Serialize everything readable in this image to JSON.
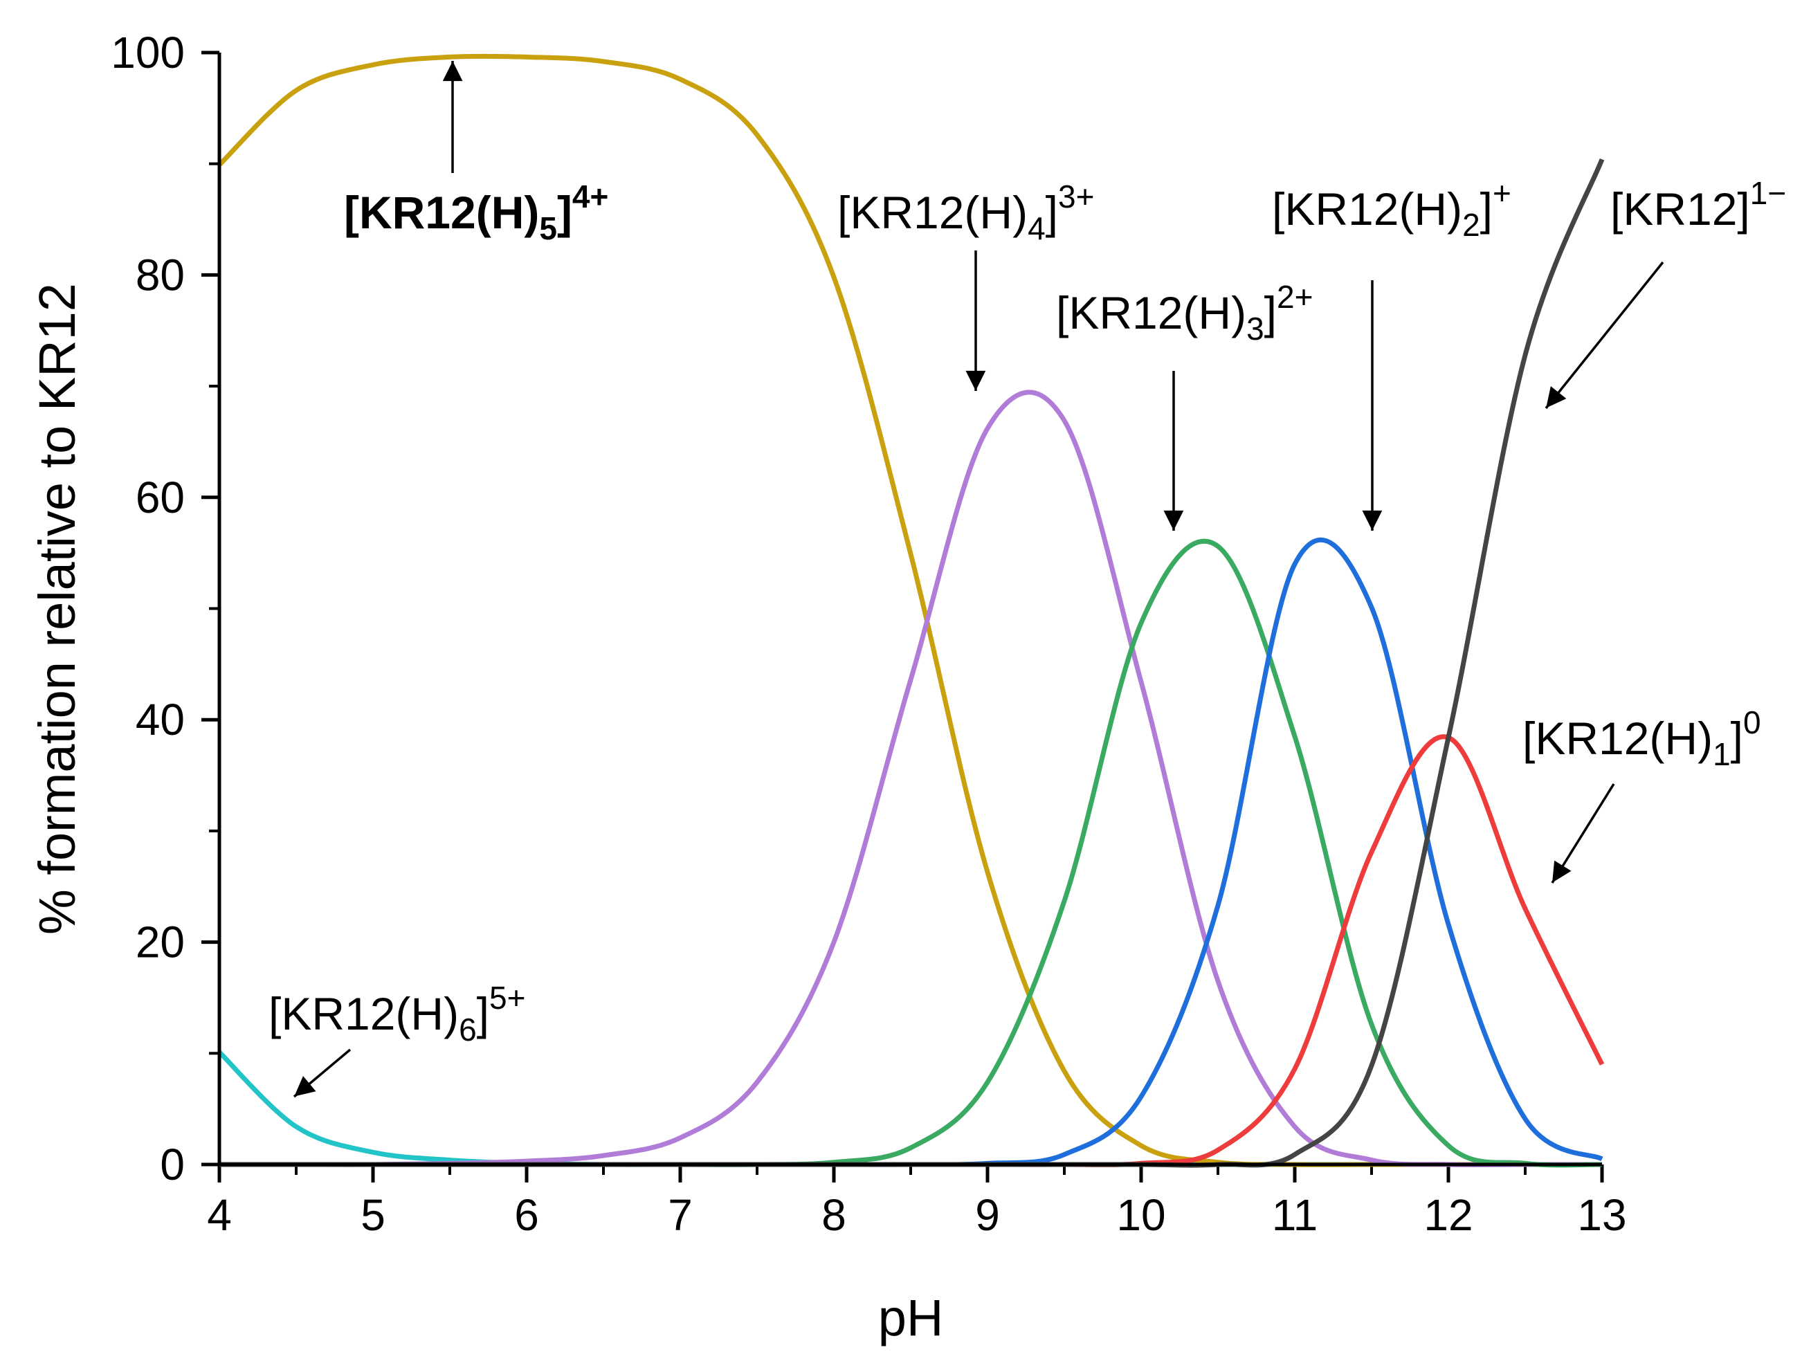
{
  "chart_data": {
    "type": "line",
    "xlabel": "pH",
    "ylabel": "% formation relative to KR12",
    "x": [
      4,
      4.5,
      5,
      5.5,
      6,
      6.5,
      7,
      7.5,
      8,
      8.5,
      9,
      9.5,
      10,
      10.5,
      11,
      11.5,
      12,
      12.5,
      13
    ],
    "xlim": [
      4,
      13
    ],
    "xticks": [
      4,
      5,
      6,
      7,
      8,
      9,
      10,
      11,
      12,
      13
    ],
    "xminorticks": [
      4.5,
      5.5,
      6.5,
      7.5,
      8.5,
      9.5,
      10.5,
      11.5,
      12.5
    ],
    "ylim": [
      0,
      100
    ],
    "yticks": [
      0,
      20,
      40,
      60,
      80,
      100
    ],
    "yminorticks": [
      10,
      30,
      50,
      70,
      90
    ],
    "series": [
      {
        "color": "#22c4c8",
        "label": {
          "base": "[KR12(H)",
          "sub": "6",
          "end": "]",
          "sup": "5+",
          "bold": false
        },
        "values": [
          10.1,
          3.4,
          1.1,
          0.4,
          0.1,
          0,
          0,
          0,
          0,
          0,
          0,
          0,
          0,
          0,
          0,
          0,
          0,
          0,
          0
        ]
      },
      {
        "color": "#c9a00e",
        "label": {
          "base": "[KR12(H)",
          "sub": "5",
          "end": "]",
          "sup": "4+",
          "bold": true
        },
        "values": [
          89.9,
          96.6,
          98.9,
          99.6,
          99.6,
          99.2,
          97.6,
          92.6,
          79.8,
          54.9,
          26.3,
          8.4,
          1.7,
          0.2,
          0,
          0,
          0,
          0,
          0
        ]
      },
      {
        "color": "#b07cd8",
        "label": {
          "base": "[KR12(H)",
          "sub": "4",
          "end": "]",
          "sup": "3+",
          "bold": false
        },
        "values": [
          0,
          0,
          0,
          0.1,
          0.3,
          0.8,
          2.4,
          7.4,
          20.0,
          43.6,
          66.2,
          66.9,
          43.4,
          16.5,
          3.4,
          0.4,
          0,
          0,
          0
        ]
      },
      {
        "color": "#3aaa62",
        "label": {
          "base": "[KR12(H)",
          "sub": "3",
          "end": "]",
          "sup": "2+",
          "bold": false
        },
        "values": [
          0,
          0,
          0,
          0,
          0,
          0,
          0,
          0,
          0.2,
          1.5,
          7.4,
          23.7,
          48.7,
          55.6,
          38.5,
          12.6,
          1.7,
          0.1,
          0
        ]
      },
      {
        "color": "#1e6fdc",
        "label": {
          "base": "[KR12(H)",
          "sub": "2",
          "end": "]",
          "sup": "+",
          "bold": false
        },
        "values": [
          0,
          0,
          0,
          0,
          0,
          0,
          0,
          0,
          0,
          0,
          0.1,
          0.9,
          6.1,
          23.3,
          54.0,
          50.1,
          21.6,
          4.1,
          0.5
        ]
      },
      {
        "color": "#ee3b3b",
        "label": {
          "base": "[KR12(H)",
          "sub": "1",
          "end": "]",
          "sup": "0",
          "bold": false
        },
        "values": [
          0,
          0,
          0,
          0,
          0,
          0,
          0,
          0,
          0,
          0,
          0,
          0,
          0.1,
          1.3,
          8.6,
          28.1,
          38.4,
          23.0,
          9.0
        ]
      },
      {
        "color": "#444444",
        "label": {
          "base": "[KR12]",
          "sup": "1−",
          "bold": false
        },
        "values": [
          0,
          0,
          0,
          0,
          0,
          0,
          0,
          0,
          0,
          0,
          0,
          0,
          0,
          0,
          0.9,
          8.9,
          38.4,
          72.8,
          90.4
        ]
      }
    ]
  }
}
